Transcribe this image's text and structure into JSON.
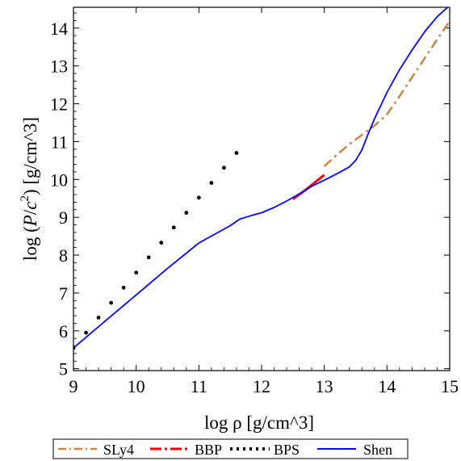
{
  "chart_data": {
    "type": "line",
    "title": "",
    "xlabel": "log ρ  [g/cm^3]",
    "ylabel": {
      "prefix": "log (",
      "P": "P",
      "slash": "/",
      "c": "c",
      "exp": "2",
      "suffix": ")  [g/cm^3]"
    },
    "xlim": [
      9,
      15
    ],
    "ylim": [
      4.95,
      14.55
    ],
    "xticks": [
      9,
      10,
      11,
      12,
      13,
      14,
      15
    ],
    "yticks": [
      5,
      6,
      7,
      8,
      9,
      10,
      11,
      12,
      13,
      14
    ],
    "grid": false,
    "legend_position": "bottom",
    "series": [
      {
        "name": "SLy4",
        "color": "#cd853f",
        "style": "dash-dot",
        "x": [
          13.0,
          13.2,
          13.4,
          13.6,
          13.8,
          14.0,
          14.2,
          14.4,
          14.6,
          14.8,
          15.0
        ],
        "y": [
          10.35,
          10.65,
          10.93,
          11.18,
          11.42,
          11.72,
          12.2,
          12.7,
          13.2,
          13.7,
          14.18
        ]
      },
      {
        "name": "BBP",
        "color": "#ff0000",
        "style": "solid-thick",
        "x": [
          12.5,
          12.7,
          12.85,
          13.0
        ],
        "y": [
          9.48,
          9.72,
          9.92,
          10.12
        ]
      },
      {
        "name": "BPS",
        "color": "#000000",
        "style": "dots",
        "x": [
          9.0,
          9.2,
          9.4,
          9.6,
          9.8,
          10.0,
          10.2,
          10.4,
          10.6,
          10.8,
          11.0,
          11.2,
          11.4,
          11.6
        ],
        "y": [
          5.55,
          5.95,
          6.35,
          6.74,
          7.14,
          7.54,
          7.94,
          8.33,
          8.73,
          9.12,
          9.52,
          9.91,
          10.31,
          10.7
        ]
      },
      {
        "name": "Shen",
        "color": "#0000ff",
        "style": "solid",
        "x": [
          9.0,
          9.5,
          10.0,
          10.5,
          11.0,
          11.5,
          11.65,
          11.8,
          12.0,
          12.2,
          12.4,
          12.6,
          12.8,
          13.0,
          13.2,
          13.4,
          13.5,
          13.6,
          13.7,
          13.8,
          14.0,
          14.2,
          14.4,
          14.6,
          14.8,
          15.0
        ],
        "y": [
          5.55,
          6.25,
          6.95,
          7.65,
          8.32,
          8.78,
          8.95,
          9.03,
          9.12,
          9.26,
          9.43,
          9.62,
          9.82,
          9.98,
          10.15,
          10.33,
          10.5,
          10.78,
          11.2,
          11.6,
          12.3,
          12.9,
          13.42,
          13.9,
          14.3,
          14.6
        ]
      }
    ]
  }
}
